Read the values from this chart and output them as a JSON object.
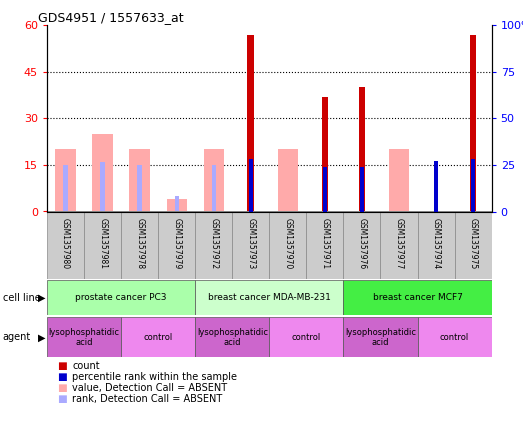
{
  "title": "GDS4951 / 1557633_at",
  "samples": [
    "GSM1357980",
    "GSM1357981",
    "GSM1357978",
    "GSM1357979",
    "GSM1357972",
    "GSM1357973",
    "GSM1357970",
    "GSM1357971",
    "GSM1357976",
    "GSM1357977",
    "GSM1357974",
    "GSM1357975"
  ],
  "count_values": [
    0,
    0,
    0,
    0,
    0,
    57,
    0,
    37,
    40,
    0,
    0,
    57
  ],
  "rank_values": [
    0,
    0,
    0,
    0,
    0,
    28,
    0,
    24,
    24,
    0,
    27,
    28
  ],
  "absent_value_values": [
    20,
    25,
    20,
    4,
    20,
    0,
    20,
    0,
    0,
    20,
    0,
    0
  ],
  "absent_rank_values": [
    15,
    16,
    15,
    5,
    15,
    0,
    0,
    0,
    0,
    0,
    0,
    0
  ],
  "cell_lines": [
    {
      "label": "prostate cancer PC3",
      "start": 0,
      "end": 4,
      "color": "#aaffaa"
    },
    {
      "label": "breast cancer MDA-MB-231",
      "start": 4,
      "end": 8,
      "color": "#ccffcc"
    },
    {
      "label": "breast cancer MCF7",
      "start": 8,
      "end": 12,
      "color": "#44ee44"
    }
  ],
  "agents": [
    {
      "label": "lysophosphatidic\nacid",
      "start": 0,
      "end": 2,
      "color": "#cc66cc"
    },
    {
      "label": "control",
      "start": 2,
      "end": 4,
      "color": "#ee88ee"
    },
    {
      "label": "lysophosphatidic\nacid",
      "start": 4,
      "end": 6,
      "color": "#cc66cc"
    },
    {
      "label": "control",
      "start": 6,
      "end": 8,
      "color": "#ee88ee"
    },
    {
      "label": "lysophosphatidic\nacid",
      "start": 8,
      "end": 10,
      "color": "#cc66cc"
    },
    {
      "label": "control",
      "start": 10,
      "end": 12,
      "color": "#ee88ee"
    }
  ],
  "ylim_left": [
    0,
    60
  ],
  "ylim_right": [
    0,
    100
  ],
  "yticks_left": [
    0,
    15,
    30,
    45,
    60
  ],
  "ytick_labels_left": [
    "0",
    "15",
    "30",
    "45",
    "60"
  ],
  "yticks_right": [
    0,
    25,
    50,
    75,
    100
  ],
  "ytick_labels_right": [
    "0",
    "25",
    "50",
    "75",
    "100%"
  ],
  "count_color": "#cc0000",
  "rank_color": "#0000cc",
  "absent_value_color": "#ffaaaa",
  "absent_rank_color": "#aaaaff",
  "legend_items": [
    {
      "color": "#cc0000",
      "label": "count"
    },
    {
      "color": "#0000cc",
      "label": "percentile rank within the sample"
    },
    {
      "color": "#ffaaaa",
      "label": "value, Detection Call = ABSENT"
    },
    {
      "color": "#aaaaff",
      "label": "rank, Detection Call = ABSENT"
    }
  ]
}
